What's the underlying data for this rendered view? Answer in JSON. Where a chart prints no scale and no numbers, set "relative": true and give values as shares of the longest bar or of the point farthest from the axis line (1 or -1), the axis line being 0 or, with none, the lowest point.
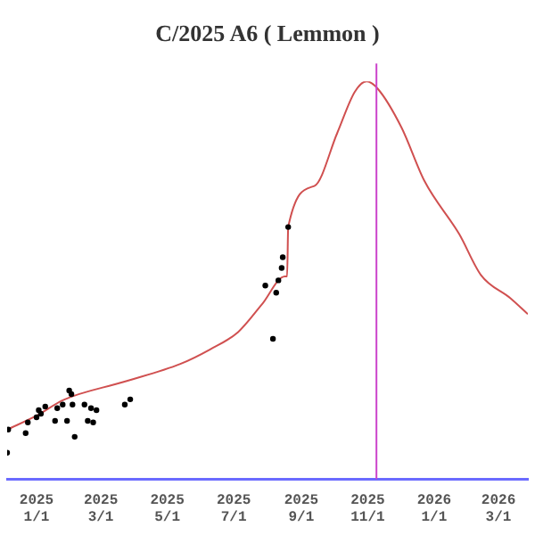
{
  "chart_data": {
    "type": "line",
    "title": "C/2025 A6 ( Lemmon )",
    "relative": true,
    "grid": false,
    "legend": false,
    "xlim": [
      "2024-12-05",
      "2026-03-28"
    ],
    "xticks": [
      {
        "value": "2025-01-01",
        "label": "2025\n1/1"
      },
      {
        "value": "2025-03-01",
        "label": "2025\n3/1"
      },
      {
        "value": "2025-05-01",
        "label": "2025\n5/1"
      },
      {
        "value": "2025-07-01",
        "label": "2025\n7/1"
      },
      {
        "value": "2025-09-01",
        "label": "2025\n9/1"
      },
      {
        "value": "2025-11-01",
        "label": "2025\n11/1"
      },
      {
        "value": "2026-01-01",
        "label": "2026\n1/1"
      },
      {
        "value": "2026-03-01",
        "label": "2026\n3/1"
      }
    ],
    "series": [
      {
        "color": "#d05050",
        "marker": "none",
        "x": [
          "2024-12-05",
          "2025-01-01",
          "2025-01-26",
          "2025-03-22",
          "2025-05-13",
          "2025-06-09",
          "2025-07-05",
          "2025-07-27",
          "2025-08-17",
          "2025-08-19",
          "2025-08-20",
          "2025-09-13",
          "2025-10-04",
          "2025-10-20",
          "2025-10-31",
          "2025-11-10",
          "2025-12-02",
          "2025-12-23",
          "2026-01-24",
          "2026-02-13",
          "2026-03-12",
          "2026-03-28"
        ],
        "values": [
          0.125,
          0.16,
          0.2,
          0.245,
          0.29,
          0.326,
          0.37,
          0.44,
          0.51,
          0.51,
          0.634,
          0.737,
          0.87,
          0.973,
          1,
          0.982,
          0.884,
          0.75,
          0.616,
          0.513,
          0.455,
          0.415
        ]
      },
      {
        "type": "scatter",
        "color": "#000000",
        "marker": "circle",
        "x": [
          "2024-12-05",
          "2024-12-06",
          "2024-12-22",
          "2024-12-24",
          "2025-01-01",
          "2025-01-03",
          "2025-01-05",
          "2025-01-09",
          "2025-01-18",
          "2025-01-20",
          "2025-01-25",
          "2025-01-29",
          "2025-01-31",
          "2025-02-02",
          "2025-02-03",
          "2025-02-05",
          "2025-02-14",
          "2025-02-17",
          "2025-02-20",
          "2025-02-22",
          "2025-02-25",
          "2025-03-23",
          "2025-03-28",
          "2025-07-30",
          "2025-08-06",
          "2025-08-09",
          "2025-08-11",
          "2025-08-14",
          "2025-08-15",
          "2025-08-20"
        ],
        "values": [
          0.067,
          0.125,
          0.116,
          0.143,
          0.156,
          0.174,
          0.165,
          0.183,
          0.147,
          0.179,
          0.188,
          0.147,
          0.223,
          0.214,
          0.188,
          0.107,
          0.188,
          0.147,
          0.179,
          0.143,
          0.174,
          0.188,
          0.201,
          0.487,
          0.353,
          0.469,
          0.5,
          0.531,
          0.558,
          0.634
        ]
      }
    ],
    "ref_lines": [
      {
        "axis": "x",
        "value": "2025-11-09",
        "color": "#cc44cc"
      }
    ]
  }
}
